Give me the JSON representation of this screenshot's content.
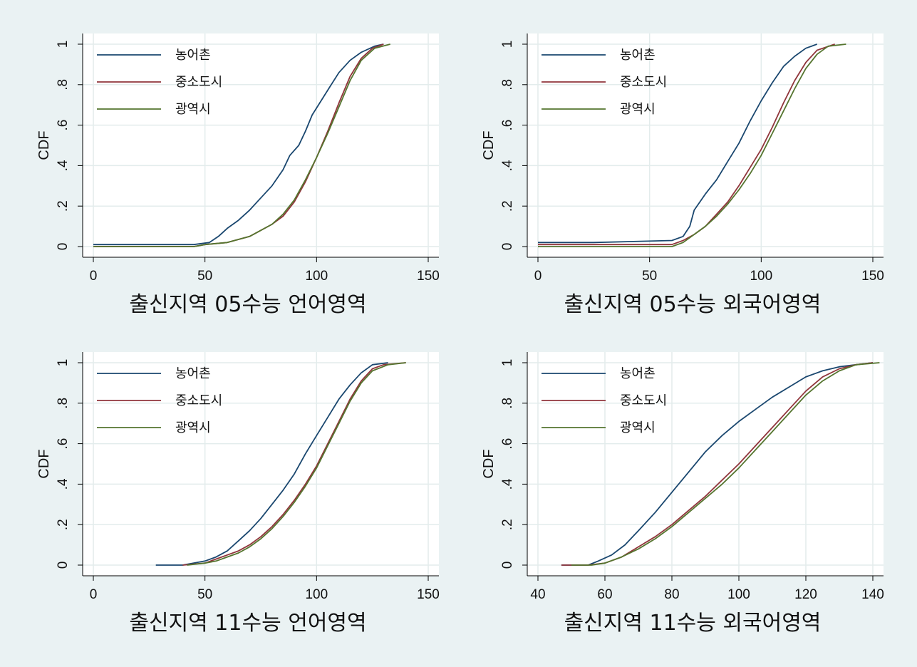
{
  "colors": {
    "background": "#eaf2f3",
    "plot_area": "#ffffff",
    "grid": "#e3ecec",
    "rural": "#1a476f",
    "small_mid_city": "#90353b",
    "metro_city": "#55752f"
  },
  "chart_data": [
    {
      "type": "line",
      "title": "",
      "xlabel": "출신지역  05수능 언어영역",
      "ylabel": "CDF",
      "xlim": [
        0,
        150
      ],
      "ylim": [
        0,
        1
      ],
      "x_ticks": [
        0,
        50,
        100,
        150
      ],
      "x_tick_labels": [
        "0",
        "50",
        "100",
        "150"
      ],
      "y_ticks": [
        0,
        0.2,
        0.4,
        0.6,
        0.8,
        1
      ],
      "y_tick_labels": [
        "0",
        ".2",
        ".4",
        ".6",
        ".8",
        "1"
      ],
      "grid": true,
      "legend": "top-left",
      "series": [
        {
          "name": "농어촌",
          "color": "#1a476f",
          "points": [
            [
              0,
              0.01
            ],
            [
              45,
              0.01
            ],
            [
              52,
              0.02
            ],
            [
              56,
              0.05
            ],
            [
              60,
              0.09
            ],
            [
              65,
              0.13
            ],
            [
              70,
              0.18
            ],
            [
              75,
              0.24
            ],
            [
              80,
              0.3
            ],
            [
              85,
              0.38
            ],
            [
              88,
              0.45
            ],
            [
              92,
              0.5
            ],
            [
              95,
              0.57
            ],
            [
              98,
              0.65
            ],
            [
              102,
              0.72
            ],
            [
              106,
              0.79
            ],
            [
              110,
              0.86
            ],
            [
              115,
              0.92
            ],
            [
              120,
              0.96
            ],
            [
              126,
              0.99
            ],
            [
              130,
              1.0
            ]
          ]
        },
        {
          "name": "중소도시",
          "color": "#90353b",
          "points": [
            [
              0,
              0.0
            ],
            [
              45,
              0.0
            ],
            [
              50,
              0.01
            ],
            [
              60,
              0.02
            ],
            [
              70,
              0.05
            ],
            [
              80,
              0.11
            ],
            [
              85,
              0.15
            ],
            [
              90,
              0.22
            ],
            [
              95,
              0.32
            ],
            [
              100,
              0.44
            ],
            [
              105,
              0.57
            ],
            [
              110,
              0.71
            ],
            [
              115,
              0.84
            ],
            [
              120,
              0.93
            ],
            [
              125,
              0.98
            ],
            [
              130,
              1.0
            ]
          ]
        },
        {
          "name": "광역시",
          "color": "#55752f",
          "points": [
            [
              0,
              0.0
            ],
            [
              45,
              0.0
            ],
            [
              50,
              0.01
            ],
            [
              60,
              0.02
            ],
            [
              70,
              0.05
            ],
            [
              80,
              0.11
            ],
            [
              85,
              0.16
            ],
            [
              90,
              0.23
            ],
            [
              95,
              0.33
            ],
            [
              100,
              0.44
            ],
            [
              105,
              0.56
            ],
            [
              110,
              0.69
            ],
            [
              115,
              0.82
            ],
            [
              120,
              0.92
            ],
            [
              126,
              0.98
            ],
            [
              133,
              1.0
            ]
          ]
        }
      ]
    },
    {
      "type": "line",
      "title": "",
      "xlabel": "출신지역  05수능 외국어영역",
      "ylabel": "CDF",
      "xlim": [
        0,
        150
      ],
      "ylim": [
        0,
        1
      ],
      "x_ticks": [
        0,
        50,
        100,
        150
      ],
      "x_tick_labels": [
        "0",
        "50",
        "100",
        "150"
      ],
      "y_ticks": [
        0,
        0.2,
        0.4,
        0.6,
        0.8,
        1
      ],
      "y_tick_labels": [
        "0",
        ".2",
        ".4",
        ".6",
        ".8",
        "1"
      ],
      "grid": true,
      "legend": "top-left",
      "series": [
        {
          "name": "농어촌",
          "color": "#1a476f",
          "points": [
            [
              0,
              0.02
            ],
            [
              25,
              0.02
            ],
            [
              60,
              0.03
            ],
            [
              65,
              0.05
            ],
            [
              68,
              0.1
            ],
            [
              70,
              0.18
            ],
            [
              75,
              0.26
            ],
            [
              80,
              0.33
            ],
            [
              85,
              0.42
            ],
            [
              90,
              0.51
            ],
            [
              95,
              0.62
            ],
            [
              100,
              0.72
            ],
            [
              105,
              0.81
            ],
            [
              110,
              0.89
            ],
            [
              115,
              0.94
            ],
            [
              120,
              0.98
            ],
            [
              125,
              1.0
            ]
          ]
        },
        {
          "name": "중소도시",
          "color": "#90353b",
          "points": [
            [
              0,
              0.01
            ],
            [
              60,
              0.01
            ],
            [
              65,
              0.03
            ],
            [
              70,
              0.06
            ],
            [
              75,
              0.1
            ],
            [
              80,
              0.16
            ],
            [
              85,
              0.22
            ],
            [
              90,
              0.3
            ],
            [
              95,
              0.39
            ],
            [
              100,
              0.48
            ],
            [
              105,
              0.59
            ],
            [
              110,
              0.71
            ],
            [
              115,
              0.82
            ],
            [
              120,
              0.91
            ],
            [
              125,
              0.97
            ],
            [
              133,
              1.0
            ]
          ]
        },
        {
          "name": "광역시",
          "color": "#55752f",
          "points": [
            [
              0,
              0.0
            ],
            [
              60,
              0.0
            ],
            [
              65,
              0.02
            ],
            [
              70,
              0.06
            ],
            [
              75,
              0.1
            ],
            [
              80,
              0.15
            ],
            [
              85,
              0.21
            ],
            [
              90,
              0.28
            ],
            [
              95,
              0.36
            ],
            [
              100,
              0.45
            ],
            [
              105,
              0.56
            ],
            [
              110,
              0.67
            ],
            [
              115,
              0.78
            ],
            [
              120,
              0.88
            ],
            [
              125,
              0.95
            ],
            [
              130,
              0.99
            ],
            [
              138,
              1.0
            ]
          ]
        }
      ]
    },
    {
      "type": "line",
      "title": "",
      "xlabel": "출신지역  11수능 언어영역",
      "ylabel": "CDF",
      "xlim": [
        0,
        150
      ],
      "ylim": [
        0,
        1
      ],
      "x_ticks": [
        0,
        50,
        100,
        150
      ],
      "x_tick_labels": [
        "0",
        "50",
        "100",
        "150"
      ],
      "y_ticks": [
        0,
        0.2,
        0.4,
        0.6,
        0.8,
        1
      ],
      "y_tick_labels": [
        "0",
        ".2",
        ".4",
        ".6",
        ".8",
        "1"
      ],
      "grid": true,
      "legend": "top-left",
      "series": [
        {
          "name": "농어촌",
          "color": "#1a476f",
          "points": [
            [
              28,
              0.0
            ],
            [
              40,
              0.0
            ],
            [
              50,
              0.02
            ],
            [
              55,
              0.04
            ],
            [
              60,
              0.07
            ],
            [
              65,
              0.12
            ],
            [
              70,
              0.17
            ],
            [
              75,
              0.23
            ],
            [
              80,
              0.3
            ],
            [
              85,
              0.37
            ],
            [
              90,
              0.45
            ],
            [
              95,
              0.55
            ],
            [
              100,
              0.64
            ],
            [
              105,
              0.73
            ],
            [
              110,
              0.82
            ],
            [
              115,
              0.89
            ],
            [
              120,
              0.95
            ],
            [
              125,
              0.99
            ],
            [
              132,
              1.0
            ]
          ]
        },
        {
          "name": "중소도시",
          "color": "#90353b",
          "points": [
            [
              40,
              0.0
            ],
            [
              50,
              0.01
            ],
            [
              55,
              0.03
            ],
            [
              60,
              0.05
            ],
            [
              65,
              0.07
            ],
            [
              70,
              0.1
            ],
            [
              75,
              0.14
            ],
            [
              80,
              0.19
            ],
            [
              85,
              0.25
            ],
            [
              90,
              0.32
            ],
            [
              95,
              0.4
            ],
            [
              100,
              0.49
            ],
            [
              105,
              0.6
            ],
            [
              110,
              0.71
            ],
            [
              115,
              0.82
            ],
            [
              120,
              0.91
            ],
            [
              125,
              0.97
            ],
            [
              130,
              0.99
            ],
            [
              140,
              1.0
            ]
          ]
        },
        {
          "name": "광역시",
          "color": "#55752f",
          "points": [
            [
              42,
              0.0
            ],
            [
              50,
              0.01
            ],
            [
              55,
              0.02
            ],
            [
              60,
              0.04
            ],
            [
              65,
              0.06
            ],
            [
              70,
              0.09
            ],
            [
              75,
              0.13
            ],
            [
              80,
              0.18
            ],
            [
              85,
              0.24
            ],
            [
              90,
              0.31
            ],
            [
              95,
              0.39
            ],
            [
              100,
              0.48
            ],
            [
              105,
              0.59
            ],
            [
              110,
              0.7
            ],
            [
              115,
              0.81
            ],
            [
              120,
              0.9
            ],
            [
              125,
              0.96
            ],
            [
              132,
              0.99
            ],
            [
              140,
              1.0
            ]
          ]
        }
      ]
    },
    {
      "type": "line",
      "title": "",
      "xlabel": "출신지역  11수능 외국어영역",
      "ylabel": "CDF",
      "xlim": [
        40,
        140
      ],
      "ylim": [
        0,
        1
      ],
      "x_ticks": [
        40,
        60,
        80,
        100,
        120,
        140
      ],
      "x_tick_labels": [
        "40",
        "60",
        "80",
        "100",
        "120",
        "140"
      ],
      "y_ticks": [
        0,
        0.2,
        0.4,
        0.6,
        0.8,
        1
      ],
      "y_tick_labels": [
        "0",
        ".2",
        ".4",
        ".6",
        ".8",
        "1"
      ],
      "grid": true,
      "legend": "top-left",
      "series": [
        {
          "name": "농어촌",
          "color": "#1a476f",
          "points": [
            [
              47,
              0.0
            ],
            [
              55,
              0.0
            ],
            [
              58,
              0.02
            ],
            [
              62,
              0.05
            ],
            [
              66,
              0.1
            ],
            [
              70,
              0.17
            ],
            [
              75,
              0.26
            ],
            [
              80,
              0.36
            ],
            [
              85,
              0.46
            ],
            [
              90,
              0.56
            ],
            [
              95,
              0.64
            ],
            [
              100,
              0.71
            ],
            [
              105,
              0.77
            ],
            [
              110,
              0.83
            ],
            [
              115,
              0.88
            ],
            [
              120,
              0.93
            ],
            [
              125,
              0.96
            ],
            [
              130,
              0.98
            ],
            [
              135,
              0.99
            ],
            [
              140,
              1.0
            ]
          ]
        },
        {
          "name": "중소도시",
          "color": "#90353b",
          "points": [
            [
              47,
              0.0
            ],
            [
              55,
              0.0
            ],
            [
              60,
              0.01
            ],
            [
              65,
              0.04
            ],
            [
              70,
              0.09
            ],
            [
              75,
              0.14
            ],
            [
              80,
              0.2
            ],
            [
              85,
              0.27
            ],
            [
              90,
              0.34
            ],
            [
              95,
              0.42
            ],
            [
              100,
              0.5
            ],
            [
              105,
              0.59
            ],
            [
              110,
              0.68
            ],
            [
              115,
              0.77
            ],
            [
              120,
              0.86
            ],
            [
              125,
              0.93
            ],
            [
              130,
              0.97
            ],
            [
              135,
              0.99
            ],
            [
              140,
              1.0
            ]
          ]
        },
        {
          "name": "광역시",
          "color": "#55752f",
          "points": [
            [
              50,
              0.0
            ],
            [
              56,
              0.0
            ],
            [
              60,
              0.01
            ],
            [
              65,
              0.04
            ],
            [
              70,
              0.08
            ],
            [
              75,
              0.13
            ],
            [
              80,
              0.19
            ],
            [
              85,
              0.26
            ],
            [
              90,
              0.33
            ],
            [
              95,
              0.4
            ],
            [
              100,
              0.48
            ],
            [
              105,
              0.57
            ],
            [
              110,
              0.66
            ],
            [
              115,
              0.75
            ],
            [
              120,
              0.84
            ],
            [
              125,
              0.91
            ],
            [
              130,
              0.96
            ],
            [
              135,
              0.99
            ],
            [
              142,
              1.0
            ]
          ]
        }
      ]
    }
  ]
}
